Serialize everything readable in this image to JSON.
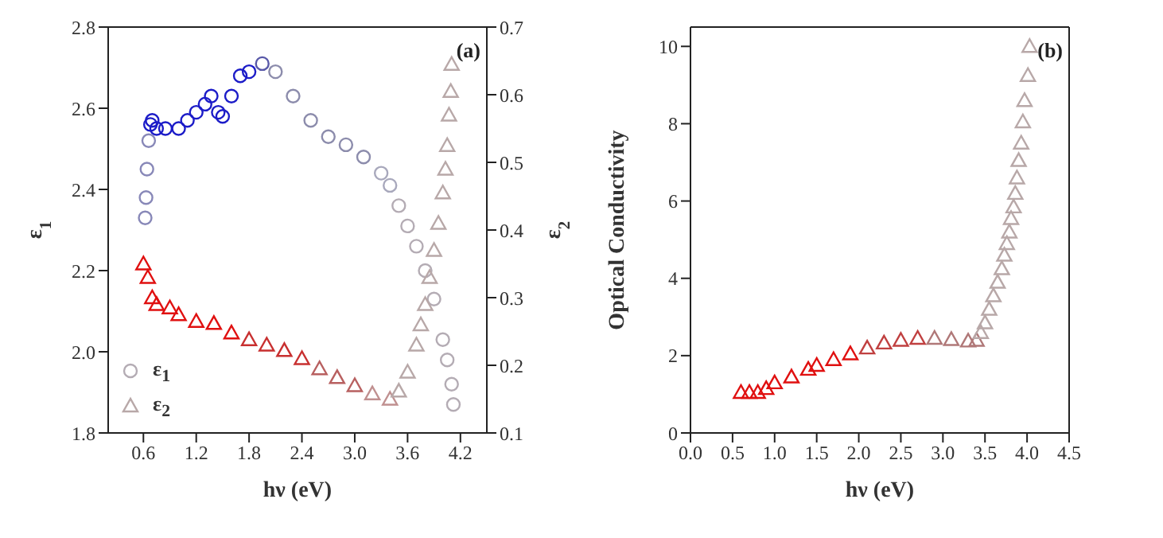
{
  "chart_data": [
    {
      "type": "scatter",
      "xlabel": "hν (eV)",
      "ylabel": "ε$_{1}$",
      "y2label": "ε$_{2}$",
      "annotations": [
        "(a)"
      ],
      "legend": "bottom left",
      "xlim": [
        0.2,
        4.5
      ],
      "xticks": [
        0.6,
        1.2,
        1.8,
        2.4,
        {
          "value": 3,
          "label": "3.0"
        },
        3.6,
        4.2
      ],
      "ylim": [
        1.8,
        2.8
      ],
      "yticks": [
        1.8,
        {
          "value": 2,
          "label": "2.0"
        },
        2.2,
        2.4,
        2.6,
        2.8
      ],
      "y2lim": [
        0.1,
        0.7
      ],
      "y2ticks": [
        0.1,
        0.2,
        0.3,
        0.4,
        0.5,
        0.6,
        0.7
      ],
      "series": [
        {
          "name": "ε$_{1}$",
          "marker": "circle",
          "x": [
            0.62,
            0.63,
            0.64,
            0.66,
            0.68,
            0.7,
            0.75,
            0.85,
            1.0,
            1.1,
            1.2,
            1.3,
            1.37,
            1.45,
            1.5,
            1.6,
            1.7,
            1.8,
            1.95,
            2.1,
            2.3,
            2.5,
            2.7,
            2.9,
            3.1,
            3.3,
            3.4,
            3.5,
            3.6,
            3.7,
            3.8,
            3.9,
            4.0,
            4.05,
            4.1,
            4.12
          ],
          "values": [
            2.33,
            2.38,
            2.45,
            2.52,
            2.56,
            2.57,
            2.55,
            2.55,
            2.55,
            2.57,
            2.59,
            2.61,
            2.63,
            2.59,
            2.58,
            2.63,
            2.68,
            2.69,
            2.71,
            2.69,
            2.63,
            2.57,
            2.53,
            2.51,
            2.48,
            2.44,
            2.41,
            2.36,
            2.31,
            2.26,
            2.2,
            2.13,
            2.03,
            1.98,
            1.92,
            1.87
          ],
          "colors": [
            "#8888b8",
            "#8888b8",
            "#8888b8",
            "#8888b8",
            "#1c1cc8",
            "#1c1cc8",
            "#1c1cc8",
            "#1c1cc8",
            "#1c1cc8",
            "#1c1cc8",
            "#1c1cc8",
            "#1c1cc8",
            "#1c1cc8",
            "#1c1cc8",
            "#1c1cc8",
            "#1c1cc8",
            "#1c1cc8",
            "#1c1cc8",
            "#5858a8",
            "#8c8cac",
            "#8c8cac",
            "#8c8cac",
            "#8c8cac",
            "#8c8cac",
            "#8c8cac",
            "#a8a8bc",
            "#a8a8bc",
            "#b4acb4",
            "#b4acb4",
            "#b4acb4",
            "#b4acb4",
            "#b4acb4",
            "#b4acb4",
            "#b4acb4",
            "#b4acb4",
            "#b4acb4"
          ]
        },
        {
          "name": "ε$_{2}$",
          "marker": "triangle",
          "axis": "y2",
          "x": [
            0.6,
            0.65,
            0.7,
            0.75,
            0.9,
            1.0,
            1.2,
            1.4,
            1.6,
            1.8,
            2.0,
            2.2,
            2.4,
            2.6,
            2.8,
            3.0,
            3.2,
            3.4,
            3.5,
            3.6,
            3.7,
            3.75,
            3.8,
            3.85,
            3.9,
            3.95,
            4.0,
            4.03,
            4.05,
            4.07,
            4.09,
            4.1
          ],
          "values": [
            0.35,
            0.33,
            0.3,
            0.29,
            0.285,
            0.275,
            0.265,
            0.262,
            0.248,
            0.238,
            0.23,
            0.222,
            0.21,
            0.195,
            0.182,
            0.17,
            0.158,
            0.15,
            0.162,
            0.19,
            0.23,
            0.26,
            0.29,
            0.33,
            0.37,
            0.41,
            0.455,
            0.49,
            0.525,
            0.57,
            0.605,
            0.645
          ],
          "colors": [
            "#e01010",
            "#e01010",
            "#e01010",
            "#e01010",
            "#e01010",
            "#e01010",
            "#e01010",
            "#e01010",
            "#e01010",
            "#c83030",
            "#c83030",
            "#c83030",
            "#c83030",
            "#b86060",
            "#b86060",
            "#b86060",
            "#c09090",
            "#c09090",
            "#b8a8a8",
            "#b8a8a8",
            "#b8a8a8",
            "#b8a8a8",
            "#b8a8a8",
            "#b8a8a8",
            "#b8a8a8",
            "#b8a8a8",
            "#b8a8a8",
            "#b8a8a8",
            "#b8a8a8",
            "#b8a8a8",
            "#b8a8a8",
            "#b8a8a8"
          ]
        }
      ]
    },
    {
      "type": "scatter",
      "xlabel": "hν (eV)",
      "ylabel": "Optical Conductivity",
      "annotations": [
        "(b)"
      ],
      "xlim": [
        0,
        4.5
      ],
      "xticks": [
        {
          "value": 0,
          "label": "0.0"
        },
        0.5,
        {
          "value": 1,
          "label": "1.0"
        },
        1.5,
        {
          "value": 2,
          "label": "2.0"
        },
        2.5,
        {
          "value": 3,
          "label": "3.0"
        },
        3.5,
        {
          "value": 4,
          "label": "4.0"
        },
        4.5
      ],
      "ylim": [
        0,
        10.5
      ],
      "yticks": [
        0,
        2,
        4,
        6,
        8,
        10
      ],
      "series": [
        {
          "marker": "triangle",
          "x": [
            0.6,
            0.7,
            0.8,
            0.9,
            1.0,
            1.2,
            1.4,
            1.5,
            1.7,
            1.9,
            2.1,
            2.3,
            2.5,
            2.7,
            2.9,
            3.1,
            3.3,
            3.4,
            3.45,
            3.5,
            3.55,
            3.6,
            3.65,
            3.7,
            3.73,
            3.76,
            3.79,
            3.81,
            3.84,
            3.86,
            3.88,
            3.9,
            3.93,
            3.95,
            3.97,
            4.01,
            4.03
          ],
          "values": [
            1.05,
            1.05,
            1.05,
            1.15,
            1.3,
            1.45,
            1.65,
            1.75,
            1.9,
            2.05,
            2.2,
            2.33,
            2.4,
            2.45,
            2.45,
            2.42,
            2.38,
            2.4,
            2.6,
            2.85,
            3.2,
            3.55,
            3.9,
            4.25,
            4.6,
            4.9,
            5.2,
            5.55,
            5.85,
            6.2,
            6.6,
            7.05,
            7.5,
            8.05,
            8.6,
            9.25,
            10.0
          ],
          "colors": [
            "#e01010",
            "#e01010",
            "#e01010",
            "#e01010",
            "#e01010",
            "#e01010",
            "#e01010",
            "#e01010",
            "#e01010",
            "#e01010",
            "#c04040",
            "#c04040",
            "#c04040",
            "#c04040",
            "#b07878",
            "#b07878",
            "#b07878",
            "#b07878",
            "#b8a8a8",
            "#b8a8a8",
            "#b8a8a8",
            "#b8a8a8",
            "#b8a8a8",
            "#b8a8a8",
            "#b8a8a8",
            "#b8a8a8",
            "#b8a8a8",
            "#b8a8a8",
            "#b8a8a8",
            "#b8a8a8",
            "#b8a8a8",
            "#b8a8a8",
            "#b8a8a8",
            "#b8a8a8",
            "#b8a8a8",
            "#b8a8a8",
            "#b8a8a8"
          ]
        }
      ]
    }
  ]
}
